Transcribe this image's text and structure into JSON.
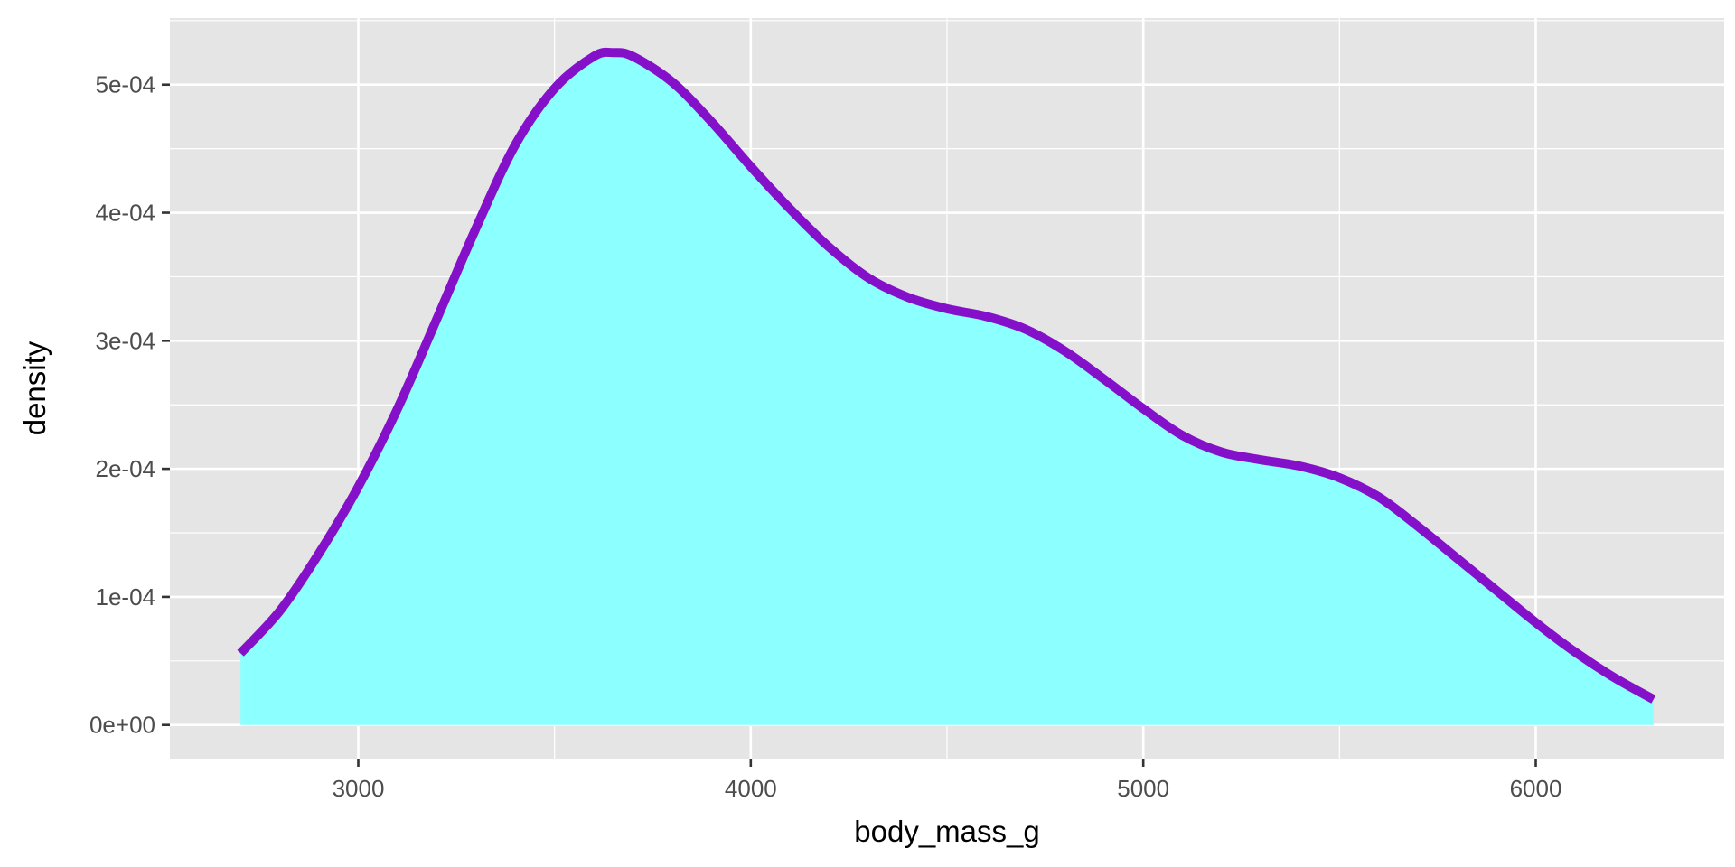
{
  "chart_data": {
    "type": "area",
    "title": "",
    "xlabel": "body_mass_g",
    "ylabel": "density",
    "xlim": [
      2520,
      6480
    ],
    "ylim": [
      -2.63e-05,
      0.000552
    ],
    "x_ticks": [
      3000,
      4000,
      5000,
      6000
    ],
    "x_tick_labels": [
      "3000",
      "4000",
      "5000",
      "6000"
    ],
    "y_ticks": [
      0,
      0.0001,
      0.0002,
      0.0003,
      0.0004,
      0.0005
    ],
    "y_tick_labels": [
      "0e+00",
      "1e-04",
      "2e-04",
      "3e-04",
      "4e-04",
      "5e-04"
    ],
    "grid": true,
    "legend": "none",
    "colors": {
      "panel_background": "#e5e5e5",
      "grid_line": "#ffffff",
      "fill": "#8cffff",
      "line": "#8510c9",
      "tick_mark": "#333333"
    },
    "series": [
      {
        "x": [
          2700,
          2800,
          2900,
          3000,
          3100,
          3200,
          3300,
          3400,
          3500,
          3600,
          3650,
          3700,
          3800,
          3900,
          4000,
          4100,
          4200,
          4300,
          4400,
          4500,
          4600,
          4700,
          4800,
          4900,
          5000,
          5100,
          5200,
          5300,
          5400,
          5500,
          5600,
          5700,
          5800,
          5900,
          6000,
          6100,
          6200,
          6300
        ],
        "y": [
          5.6e-05,
          8.9e-05,
          0.000134,
          0.000186,
          0.000247,
          0.000317,
          0.000388,
          0.000453,
          0.000497,
          0.000522,
          0.000525,
          0.000522,
          0.000502,
          0.000471,
          0.000436,
          0.000403,
          0.000373,
          0.000349,
          0.000334,
          0.000325,
          0.000319,
          0.000309,
          0.000292,
          0.00027,
          0.000247,
          0.000226,
          0.000213,
          0.000207,
          0.000202,
          0.000193,
          0.000178,
          0.000155,
          0.00013,
          0.000105,
          8e-05,
          5.7e-05,
          3.7e-05,
          2e-05
        ]
      }
    ]
  }
}
